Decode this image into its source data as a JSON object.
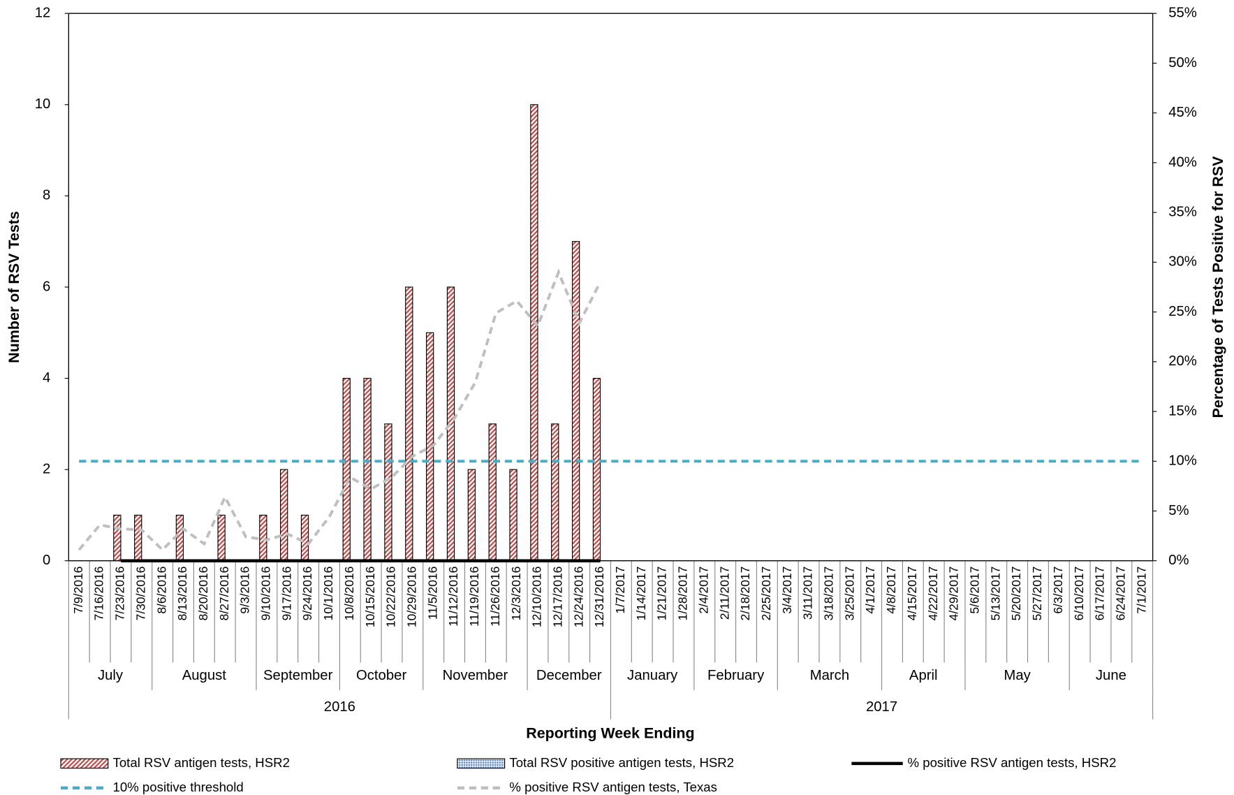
{
  "chart_data": {
    "type": "bar",
    "categories": [
      "7/9/2016",
      "7/16/2016",
      "7/23/2016",
      "7/30/2016",
      "8/6/2016",
      "8/13/2016",
      "8/20/2016",
      "8/27/2016",
      "9/3/2016",
      "9/10/2016",
      "9/17/2016",
      "9/24/2016",
      "10/1/2016",
      "10/8/2016",
      "10/15/2016",
      "10/22/2016",
      "10/29/2016",
      "11/5/2016",
      "11/12/2016",
      "11/19/2016",
      "11/26/2016",
      "12/3/2016",
      "12/10/2016",
      "12/17/2016",
      "12/24/2016",
      "12/31/2016",
      "1/7/2017",
      "1/14/2017",
      "1/21/2017",
      "1/28/2017",
      "2/4/2017",
      "2/11/2017",
      "2/18/2017",
      "2/25/2017",
      "3/4/2017",
      "3/11/2017",
      "3/18/2017",
      "3/25/2017",
      "4/1/2017",
      "4/8/2017",
      "4/15/2017",
      "4/22/2017",
      "4/29/2017",
      "5/6/2017",
      "5/13/2017",
      "5/20/2017",
      "5/27/2017",
      "6/3/2017",
      "6/10/2017",
      "6/17/2017",
      "6/24/2017",
      "7/1/2017"
    ],
    "months": [
      "July",
      "July",
      "July",
      "July",
      "August",
      "August",
      "August",
      "August",
      "August",
      "September",
      "September",
      "September",
      "September",
      "October",
      "October",
      "October",
      "October",
      "November",
      "November",
      "November",
      "November",
      "November",
      "December",
      "December",
      "December",
      "December",
      "January",
      "January",
      "January",
      "January",
      "February",
      "February",
      "February",
      "February",
      "March",
      "March",
      "March",
      "March",
      "March",
      "April",
      "April",
      "April",
      "April",
      "May",
      "May",
      "May",
      "May",
      "May",
      "June",
      "June",
      "June",
      "June"
    ],
    "years": [
      "2016",
      "2016",
      "2016",
      "2016",
      "2016",
      "2016",
      "2016",
      "2016",
      "2016",
      "2016",
      "2016",
      "2016",
      "2016",
      "2016",
      "2016",
      "2016",
      "2016",
      "2016",
      "2016",
      "2016",
      "2016",
      "2016",
      "2016",
      "2016",
      "2016",
      "2016",
      "2017",
      "2017",
      "2017",
      "2017",
      "2017",
      "2017",
      "2017",
      "2017",
      "2017",
      "2017",
      "2017",
      "2017",
      "2017",
      "2017",
      "2017",
      "2017",
      "2017",
      "2017",
      "2017",
      "2017",
      "2017",
      "2017",
      "2017",
      "2017",
      "2017",
      "2017"
    ],
    "xlabel": "Reporting Week Ending",
    "ylabel": "Number of RSV Tests",
    "y2label": "Percentage of Tests Positive for RSV",
    "ylim": [
      0,
      12
    ],
    "yticks": [
      0,
      2,
      4,
      6,
      8,
      10,
      12
    ],
    "y2lim": [
      0,
      55
    ],
    "y2ticks": [
      {
        "value": 0,
        "label": "0%"
      },
      {
        "value": 5,
        "label": "5%"
      },
      {
        "value": 10,
        "label": "10%"
      },
      {
        "value": 15,
        "label": "15%"
      },
      {
        "value": 20,
        "label": "20%"
      },
      {
        "value": 25,
        "label": "25%"
      },
      {
        "value": 30,
        "label": "30%"
      },
      {
        "value": 35,
        "label": "35%"
      },
      {
        "value": 40,
        "label": "40%"
      },
      {
        "value": 45,
        "label": "45%"
      },
      {
        "value": 50,
        "label": "50%"
      },
      {
        "value": 55,
        "label": "55%"
      }
    ],
    "grid": false,
    "series": [
      {
        "name": "Total RSV antigen tests, HSR2",
        "type": "bar",
        "color": "#c0504d",
        "pattern": "stripes",
        "values": [
          0,
          0,
          1,
          1,
          0,
          1,
          0,
          1,
          0,
          1,
          2,
          1,
          0,
          4,
          4,
          3,
          6,
          5,
          6,
          2,
          3,
          2,
          10,
          3,
          7,
          4,
          null,
          null,
          null,
          null,
          null,
          null,
          null,
          null,
          null,
          null,
          null,
          null,
          null,
          null,
          null,
          null,
          null,
          null,
          null,
          null,
          null,
          null,
          null,
          null,
          null,
          null
        ]
      },
      {
        "name": "Total RSV positive antigen tests, HSR2",
        "type": "bar",
        "color": "#4f81bd",
        "pattern": "dots",
        "values": [
          0,
          0,
          0,
          0,
          0,
          0,
          0,
          0,
          0,
          0,
          0,
          0,
          0,
          0,
          0,
          0,
          0,
          0,
          0,
          0,
          0,
          0,
          0,
          0,
          0,
          0,
          null,
          null,
          null,
          null,
          null,
          null,
          null,
          null,
          null,
          null,
          null,
          null,
          null,
          null,
          null,
          null,
          null,
          null,
          null,
          null,
          null,
          null,
          null,
          null,
          null,
          null
        ]
      },
      {
        "name": "% positive RSV antigen tests, HSR2",
        "type": "line",
        "axis": "y2",
        "color": "#000000",
        "dash": "solid",
        "values": [
          null,
          null,
          0,
          0,
          0,
          0,
          0,
          0,
          0,
          0,
          0,
          0,
          0,
          0,
          0,
          0,
          0,
          0,
          0,
          0,
          0,
          0,
          0,
          0,
          0,
          0,
          null,
          null,
          null,
          null,
          null,
          null,
          null,
          null,
          null,
          null,
          null,
          null,
          null,
          null,
          null,
          null,
          null,
          null,
          null,
          null,
          null,
          null,
          null,
          null,
          null,
          null
        ]
      },
      {
        "name": "10% positive threshold",
        "type": "line",
        "axis": "y2",
        "color": "#4bacc6",
        "dash": "dashed",
        "values": [
          10,
          10,
          10,
          10,
          10,
          10,
          10,
          10,
          10,
          10,
          10,
          10,
          10,
          10,
          10,
          10,
          10,
          10,
          10,
          10,
          10,
          10,
          10,
          10,
          10,
          10,
          10,
          10,
          10,
          10,
          10,
          10,
          10,
          10,
          10,
          10,
          10,
          10,
          10,
          10,
          10,
          10,
          10,
          10,
          10,
          10,
          10,
          10,
          10,
          10,
          10,
          10
        ]
      },
      {
        "name": "% positive RSV antigen tests, Texas",
        "type": "line",
        "axis": "y2",
        "color": "#bfbfbf",
        "dash": "dashed",
        "values": [
          1.1,
          3.6,
          3.2,
          3.1,
          1.1,
          3.2,
          1.7,
          6.4,
          2.4,
          2.1,
          2.7,
          1.7,
          4.4,
          8.4,
          7.2,
          8.4,
          10.5,
          11.6,
          14.3,
          17.9,
          24.9,
          26.1,
          23.6,
          29.0,
          23.9,
          28.0,
          null,
          null,
          null,
          null,
          null,
          null,
          null,
          null,
          null,
          null,
          null,
          null,
          null,
          null,
          null,
          null,
          null,
          null,
          null,
          null,
          null,
          null,
          null,
          null,
          null,
          null
        ]
      }
    ]
  }
}
